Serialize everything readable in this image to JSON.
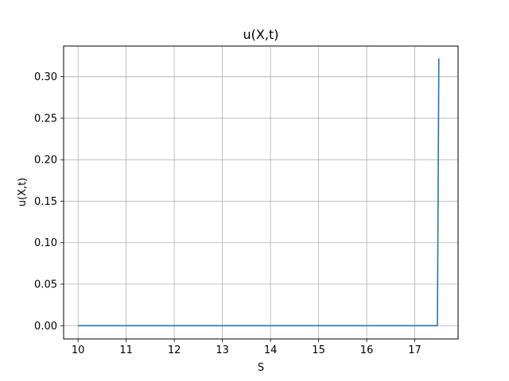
{
  "chart_data": {
    "type": "line",
    "title": "u(X,t)",
    "xlabel": "S",
    "ylabel": "u(X,t)",
    "xlim": [
      9.7,
      17.9
    ],
    "ylim": [
      -0.016,
      0.337
    ],
    "xticks": [
      10,
      11,
      12,
      13,
      14,
      15,
      16,
      17
    ],
    "xtick_labels": [
      "10",
      "11",
      "12",
      "13",
      "14",
      "15",
      "16",
      "17"
    ],
    "yticks": [
      0.0,
      0.05,
      0.1,
      0.15,
      0.2,
      0.25,
      0.3
    ],
    "ytick_labels": [
      "0.00",
      "0.05",
      "0.10",
      "0.15",
      "0.20",
      "0.25",
      "0.30"
    ],
    "grid": true,
    "series": [
      {
        "color": "#1f77b4",
        "x": [
          10.0,
          11.0,
          12.0,
          13.0,
          14.0,
          15.0,
          16.0,
          17.0,
          17.47,
          17.5
        ],
        "y": [
          0.0,
          0.0,
          0.0,
          0.0,
          0.0,
          0.0,
          0.0,
          0.0,
          0.0,
          0.322
        ]
      }
    ]
  }
}
